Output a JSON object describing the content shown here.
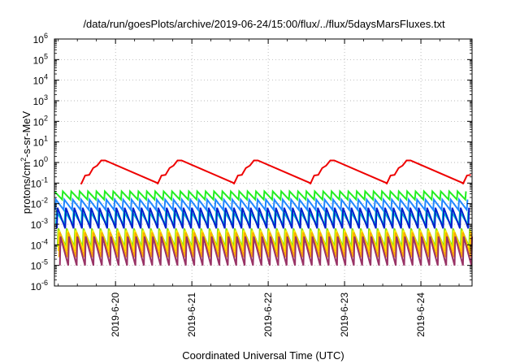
{
  "chart_data": {
    "type": "line",
    "title": "/data/run/goesPlots/archive/2019-06-24/15:00/flux/../flux/5daysMarsFluxes.txt",
    "xlabel": "Coordinated Universal Time (UTC)",
    "ylabel_main": "protons/cm",
    "ylabel_sup": "2",
    "ylabel_tail": "-s-sr-MeV",
    "yscale": "log",
    "ylim_exp": [
      -6,
      6
    ],
    "y_tick_base": "10",
    "y_tick_exponents": [
      "-6",
      "-5",
      "-4",
      "-3",
      "-2",
      "-1",
      "0",
      "1",
      "2",
      "3",
      "4",
      "5",
      "6"
    ],
    "xlim_days": [
      19.2,
      24.67
    ],
    "x_ticks": [
      {
        "label": "2019-6-20",
        "day": 20
      },
      {
        "label": "2019-6-21",
        "day": 21
      },
      {
        "label": "2019-6-22",
        "day": 22
      },
      {
        "label": "2019-6-23",
        "day": 23
      },
      {
        "label": "2019-6-24",
        "day": 24
      }
    ],
    "grid": true,
    "legend": "none",
    "series": [
      {
        "color": "#ee0000",
        "log_high": 0.1,
        "log_low": -1.0,
        "period_days": 1.0,
        "phase_days": 0.35,
        "teeth": 3,
        "tooth_amp": 0.25,
        "tooth_period": 0.105
      },
      {
        "color": "#22ee22",
        "log_high": -1.4,
        "log_low": -1.8,
        "period_days": 0.11,
        "phase_days": 0.0
      },
      {
        "color": "#2288ff",
        "log_high": -1.8,
        "log_low": -2.3,
        "period_days": 0.11,
        "phase_days": 0.02
      },
      {
        "color": "#00cccc",
        "log_high": -2.4,
        "log_low": -3.0,
        "period_days": 0.11,
        "phase_days": 0.03
      },
      {
        "color": "#0022cc",
        "log_high": -2.2,
        "log_low": -3.2,
        "period_days": 0.11,
        "phase_days": 0.04
      },
      {
        "color": "#88dd11",
        "log_high": -3.2,
        "log_low": -4.1,
        "period_days": 0.11,
        "phase_days": 0.05
      },
      {
        "color": "#ffee00",
        "log_high": -3.3,
        "log_low": -4.3,
        "period_days": 0.11,
        "phase_days": 0.06
      },
      {
        "color": "#ffaa00",
        "log_high": -3.4,
        "log_low": -4.6,
        "period_days": 0.11,
        "phase_days": 0.07
      },
      {
        "color": "#993366",
        "log_high": -3.6,
        "log_low": -5.0,
        "period_days": 0.11,
        "phase_days": 0.08
      }
    ]
  }
}
